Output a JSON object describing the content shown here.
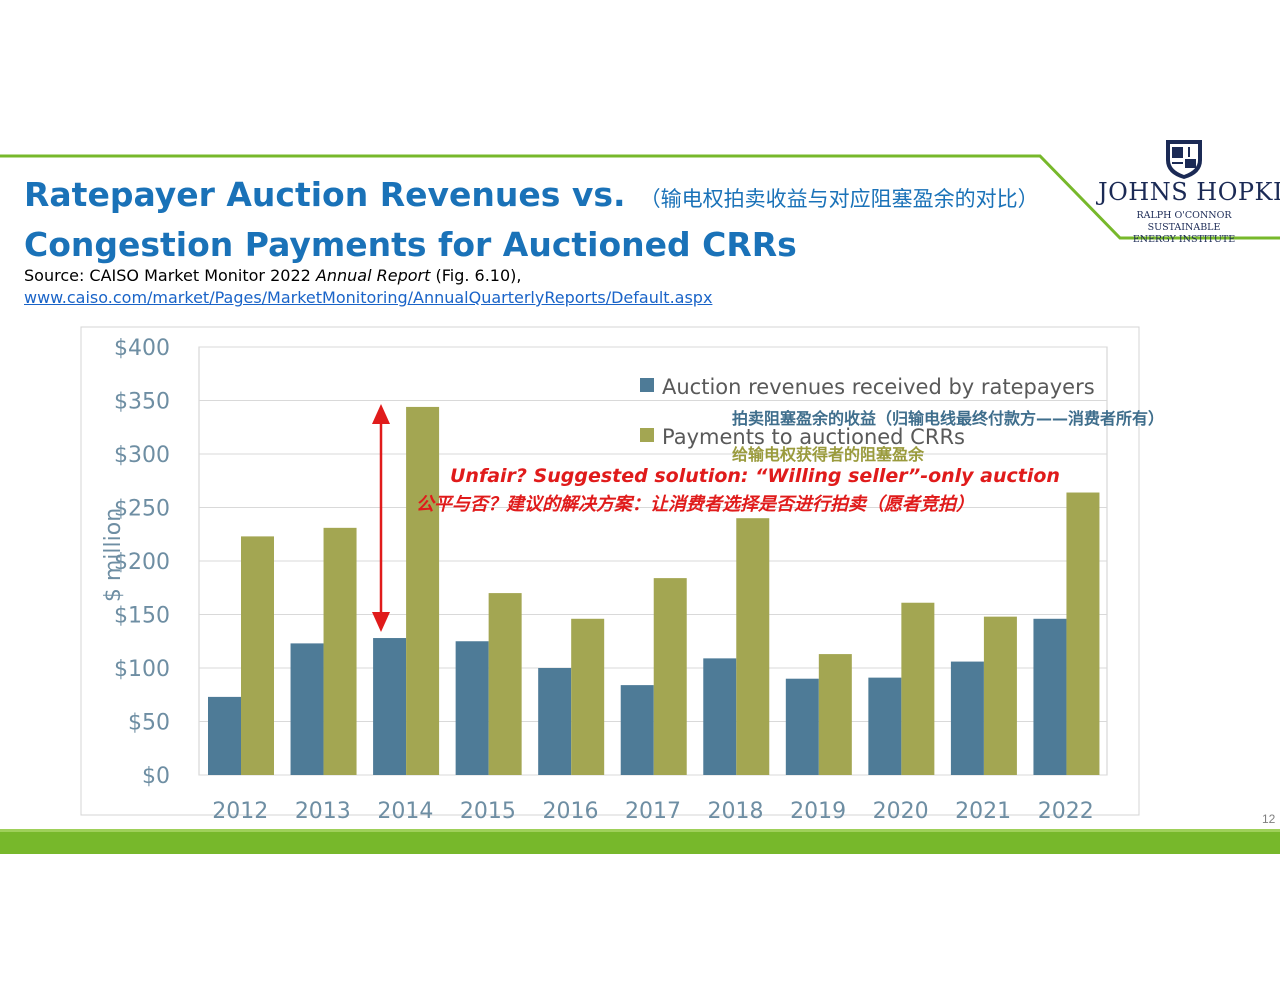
{
  "slide": {
    "title_line1": "Ratepayer Auction Revenues vs.",
    "title_cn": "（输电权拍卖收益与对应阻塞盈余的对比）",
    "title_line2": "Congestion Payments for Auctioned CRRs",
    "source_prefix": "Source: CAISO Market Monitor 2022 ",
    "source_italic": "Annual Report",
    "source_suffix": " (Fig. 6.10),",
    "source_url": "www.caiso.com/market/Pages/MarketMonitoring/AnnualQuarterlyReports/Default.aspx",
    "page_number": "12"
  },
  "logo": {
    "name": "JOHNS HOPKINS",
    "sub1": "RALPH O'CONNOR SUSTAINABLE",
    "sub2": "ENERGY INSTITUTE"
  },
  "colors": {
    "title_blue": "#1a72b8",
    "bar_blue": "#4e7b97",
    "bar_olive": "#a3a652",
    "annotation_red": "#e01b1b",
    "cn_blue_note": "#3f6e8c",
    "cn_olive_note": "#9a9b3d",
    "band_green": "#77b82b"
  },
  "chart_data": {
    "type": "bar",
    "categories": [
      "2012",
      "2013",
      "2014",
      "2015",
      "2016",
      "2017",
      "2018",
      "2019",
      "2020",
      "2021",
      "2022"
    ],
    "series": [
      {
        "name": "Auction revenues received by ratepayers",
        "values": [
          73,
          123,
          128,
          125,
          100,
          84,
          109,
          90,
          91,
          106,
          146
        ]
      },
      {
        "name": "Payments to auctioned CRRs",
        "values": [
          223,
          231,
          344,
          170,
          146,
          184,
          240,
          113,
          161,
          148,
          264
        ]
      }
    ],
    "ylabel": "$ million",
    "ylim": [
      0,
      400
    ],
    "yticks": [
      0,
      50,
      100,
      150,
      200,
      250,
      300,
      350,
      400
    ],
    "ytick_labels": [
      "$0",
      "$50",
      "$100",
      "$150",
      "$200",
      "$250",
      "$300",
      "$350",
      "$400"
    ],
    "grid": true,
    "legend_position": "top-right",
    "annotations": {
      "legend_note_1": "拍卖阻塞盈余的收益（归输电线最终付款方——消费者所有）",
      "legend_note_2": "给输电权获得者的阻塞盈余",
      "red_en": "Unfair?  Suggested solution: “Willing seller”-only auction",
      "red_cn": "公平与否？建议的解决方案：让消费者选择是否进行拍卖（愿者竞拍）"
    }
  }
}
